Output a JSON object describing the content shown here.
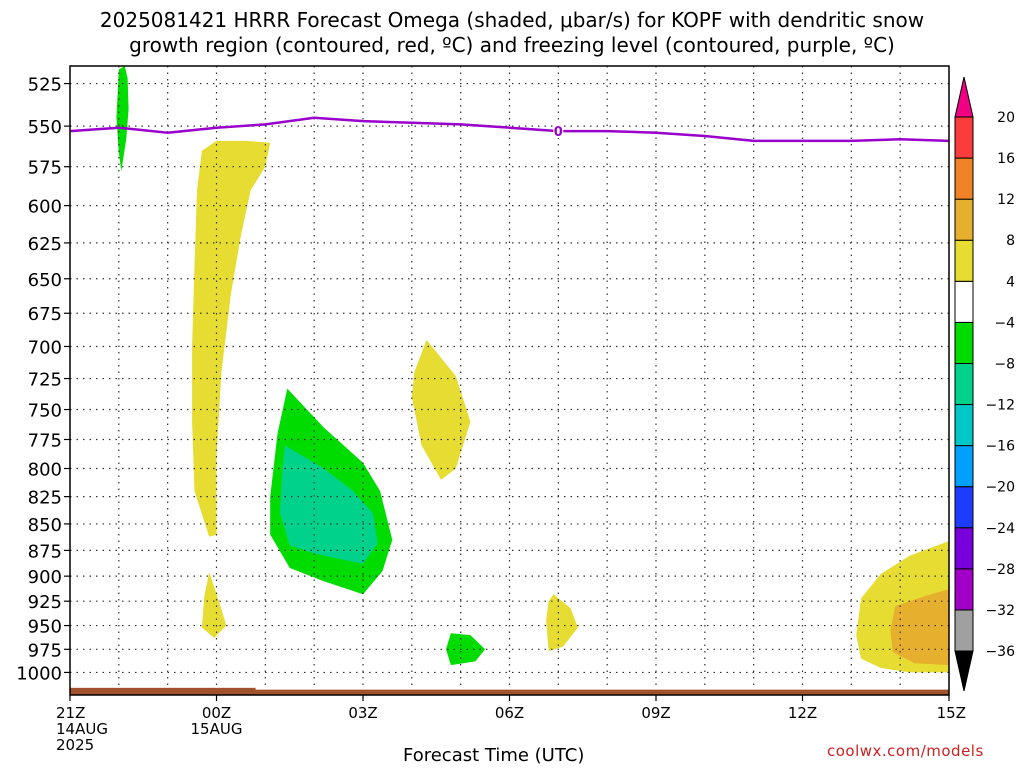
{
  "title_line1": "2025081421 HRRR Forecast Omega (shaded, μbar/s) for KOPF with dendritic snow",
  "title_line2": "growth region (contoured, red, ºC) and freezing level (contoured, purple, ºC)",
  "credit": "coolwx.com/models",
  "chart_data": {
    "type": "contour",
    "title": "2025081421 HRRR Forecast Omega (shaded, μbar/s) for KOPF with dendritic snow growth region (contoured, red, ºC) and freezing level (contoured, purple, ºC)",
    "xlabel": "Forecast Time (UTC)",
    "ylabel": "",
    "x_range_hours": [
      0,
      18
    ],
    "y_range_hpa": [
      515,
      1025
    ],
    "y_scale": "log-pressure (top 515, bottom 1025)",
    "grid": true,
    "x_ticks": [
      {
        "hour": 0,
        "label": "21Z",
        "sub1": "14AUG",
        "sub2": "2025"
      },
      {
        "hour": 3,
        "label": "00Z",
        "sub1": "15AUG",
        "sub2": ""
      },
      {
        "hour": 6,
        "label": "03Z",
        "sub1": "",
        "sub2": ""
      },
      {
        "hour": 9,
        "label": "06Z",
        "sub1": "",
        "sub2": ""
      },
      {
        "hour": 12,
        "label": "09Z",
        "sub1": "",
        "sub2": ""
      },
      {
        "hour": 15,
        "label": "12Z",
        "sub1": "",
        "sub2": ""
      },
      {
        "hour": 18,
        "label": "15Z",
        "sub1": "",
        "sub2": ""
      }
    ],
    "y_ticks": [
      525,
      550,
      575,
      600,
      625,
      650,
      675,
      700,
      725,
      750,
      775,
      800,
      825,
      850,
      875,
      900,
      925,
      950,
      975,
      1000
    ],
    "freezing_level": {
      "color": "#9900cc",
      "label": "0",
      "label_at_hour": 10.0,
      "points": [
        [
          0,
          553
        ],
        [
          1,
          551
        ],
        [
          2,
          554
        ],
        [
          3,
          551
        ],
        [
          4,
          549
        ],
        [
          5,
          545
        ],
        [
          6,
          547
        ],
        [
          7,
          548
        ],
        [
          8,
          549
        ],
        [
          9,
          551
        ],
        [
          10,
          553
        ],
        [
          11,
          553
        ],
        [
          12,
          554
        ],
        [
          13,
          556
        ],
        [
          14,
          559
        ],
        [
          15,
          559
        ],
        [
          16,
          559
        ],
        [
          17,
          558
        ],
        [
          18,
          559
        ]
      ]
    },
    "ground": {
      "color": "#a0522d",
      "surface_hpa": 1019,
      "bump_until_hour": 3.8,
      "bump_hpa": 1017
    },
    "colorbar": {
      "levels": [
        -36,
        -32,
        -28,
        -24,
        -20,
        -16,
        -12,
        -8,
        -4,
        4,
        8,
        12,
        16,
        20
      ],
      "colors": [
        "#000000",
        "#a0a0a0",
        "#a000c8",
        "#7800dc",
        "#1e3cff",
        "#00a0ff",
        "#00c8c8",
        "#00d28c",
        "#00dc00",
        "#ffffff",
        "#e6dc32",
        "#e6af2d",
        "#f08228",
        "#fa3c3c",
        "#f00082"
      ]
    },
    "shaded_regions": [
      {
        "name": "green-streak-top",
        "color": "#00dc00",
        "points": [
          [
            1.0,
            517
          ],
          [
            1.12,
            515
          ],
          [
            1.18,
            522
          ],
          [
            1.2,
            540
          ],
          [
            1.15,
            558
          ],
          [
            1.05,
            578
          ],
          [
            1.0,
            566
          ],
          [
            0.95,
            545
          ],
          [
            0.98,
            528
          ]
        ]
      },
      {
        "name": "yellow-column",
        "color": "#e6dc32",
        "points": [
          [
            3.6,
            559
          ],
          [
            4.1,
            560
          ],
          [
            4.0,
            575
          ],
          [
            3.7,
            590
          ],
          [
            3.5,
            620
          ],
          [
            3.3,
            660
          ],
          [
            3.1,
            720
          ],
          [
            3.0,
            790
          ],
          [
            3.0,
            860
          ],
          [
            2.85,
            862
          ],
          [
            2.55,
            820
          ],
          [
            2.5,
            760
          ],
          [
            2.5,
            700
          ],
          [
            2.55,
            640
          ],
          [
            2.6,
            590
          ],
          [
            2.7,
            565
          ],
          [
            3.0,
            559
          ]
        ]
      },
      {
        "name": "yellow-small-near-00Z",
        "color": "#e6dc32",
        "points": [
          [
            2.85,
            896
          ],
          [
            3.05,
            925
          ],
          [
            3.2,
            950
          ],
          [
            2.95,
            963
          ],
          [
            2.7,
            952
          ],
          [
            2.75,
            920
          ]
        ]
      },
      {
        "name": "green-main",
        "color": "#00dc00",
        "points": [
          [
            4.45,
            733
          ],
          [
            5.2,
            765
          ],
          [
            6.0,
            795
          ],
          [
            6.35,
            820
          ],
          [
            6.6,
            865
          ],
          [
            6.4,
            895
          ],
          [
            6.0,
            918
          ],
          [
            5.2,
            905
          ],
          [
            4.5,
            892
          ],
          [
            4.1,
            860
          ],
          [
            4.1,
            825
          ],
          [
            4.25,
            770
          ]
        ]
      },
      {
        "name": "teal-core",
        "color": "#00d28c",
        "points": [
          [
            4.4,
            780
          ],
          [
            5.2,
            800
          ],
          [
            5.8,
            820
          ],
          [
            6.2,
            840
          ],
          [
            6.3,
            868
          ],
          [
            6.0,
            888
          ],
          [
            5.0,
            878
          ],
          [
            4.5,
            870
          ],
          [
            4.3,
            840
          ],
          [
            4.35,
            800
          ]
        ]
      },
      {
        "name": "yellow-mid-right",
        "color": "#e6dc32",
        "points": [
          [
            7.3,
            695
          ],
          [
            7.9,
            723
          ],
          [
            8.2,
            760
          ],
          [
            7.9,
            800
          ],
          [
            7.6,
            810
          ],
          [
            7.2,
            780
          ],
          [
            7.0,
            740
          ],
          [
            7.05,
            720
          ]
        ]
      },
      {
        "name": "green-small-04Z",
        "color": "#00dc00",
        "points": [
          [
            7.8,
            958
          ],
          [
            8.2,
            960
          ],
          [
            8.5,
            975
          ],
          [
            8.3,
            988
          ],
          [
            7.8,
            992
          ],
          [
            7.7,
            975
          ]
        ]
      },
      {
        "name": "yellow-small-07Z",
        "color": "#e6dc32",
        "points": [
          [
            9.9,
            918
          ],
          [
            10.25,
            932
          ],
          [
            10.4,
            952
          ],
          [
            10.1,
            972
          ],
          [
            9.8,
            977
          ],
          [
            9.75,
            945
          ],
          [
            9.8,
            925
          ]
        ]
      },
      {
        "name": "yellow-bottom-right",
        "color": "#e6dc32",
        "points": [
          [
            18,
            866
          ],
          [
            17.2,
            880
          ],
          [
            16.6,
            898
          ],
          [
            16.2,
            922
          ],
          [
            16.1,
            960
          ],
          [
            16.2,
            985
          ],
          [
            16.6,
            995
          ],
          [
            17.2,
            1000
          ],
          [
            18,
            1000
          ]
        ]
      },
      {
        "name": "orange-bottom-right",
        "color": "#e6af2d",
        "points": [
          [
            18,
            913
          ],
          [
            17.5,
            920
          ],
          [
            16.9,
            930
          ],
          [
            16.8,
            955
          ],
          [
            16.85,
            978
          ],
          [
            17.3,
            990
          ],
          [
            18,
            992
          ]
        ]
      }
    ]
  }
}
